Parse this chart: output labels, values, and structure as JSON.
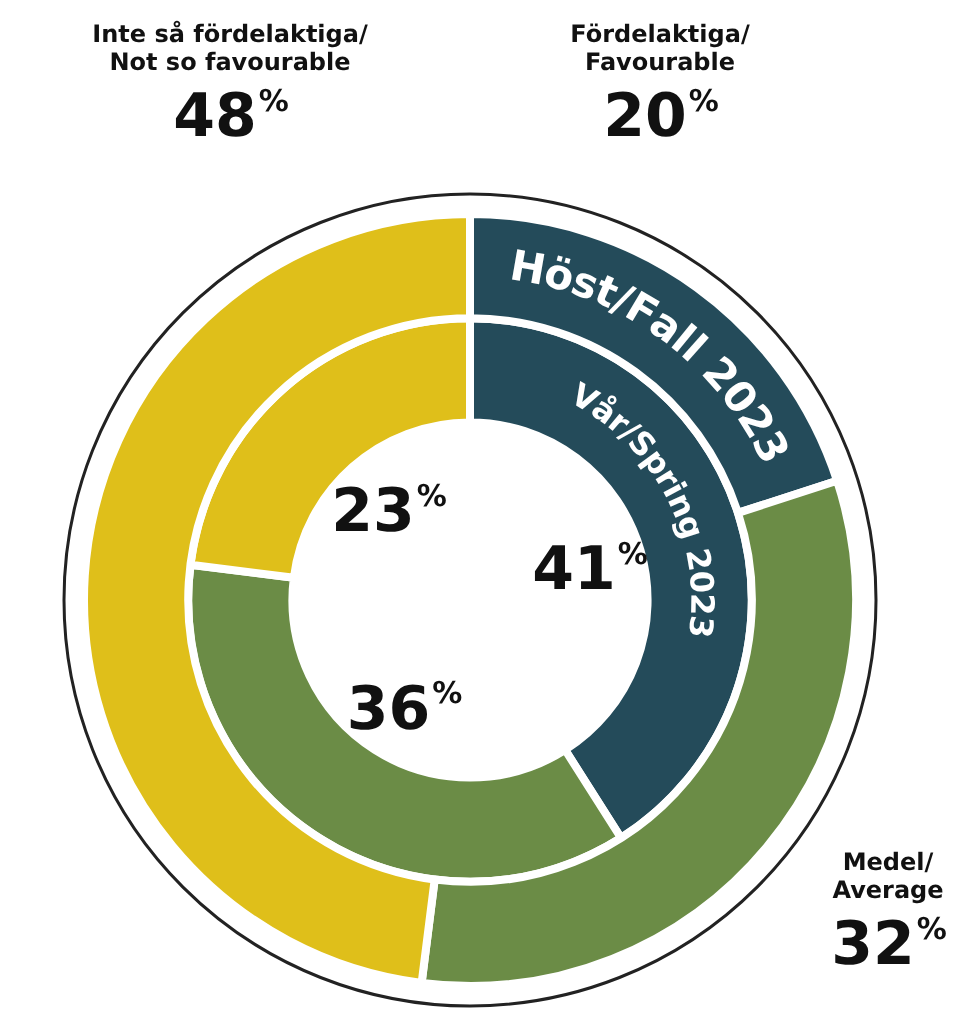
{
  "chart_data": {
    "type": "donut",
    "categories": [
      "Fördelaktiga/ Favourable",
      "Medel/ Average",
      "Inte så fördelaktiga/ Not so favourable"
    ],
    "series": [
      {
        "name": "Höst/Fall 2023",
        "values": [
          20,
          32,
          48
        ],
        "colors": [
          "#244b5a",
          "#6b8c46",
          "#dfbf1a"
        ],
        "value_labels": [
          "20%",
          "32%",
          "48%"
        ]
      },
      {
        "name": "Vår/Spring 2023",
        "values": [
          41,
          36,
          23
        ],
        "colors": [
          "#244b5a",
          "#6b8c46",
          "#dfbf1a"
        ],
        "value_labels": [
          "41%",
          "36%",
          "23%"
        ]
      }
    ],
    "legend": false
  }
}
